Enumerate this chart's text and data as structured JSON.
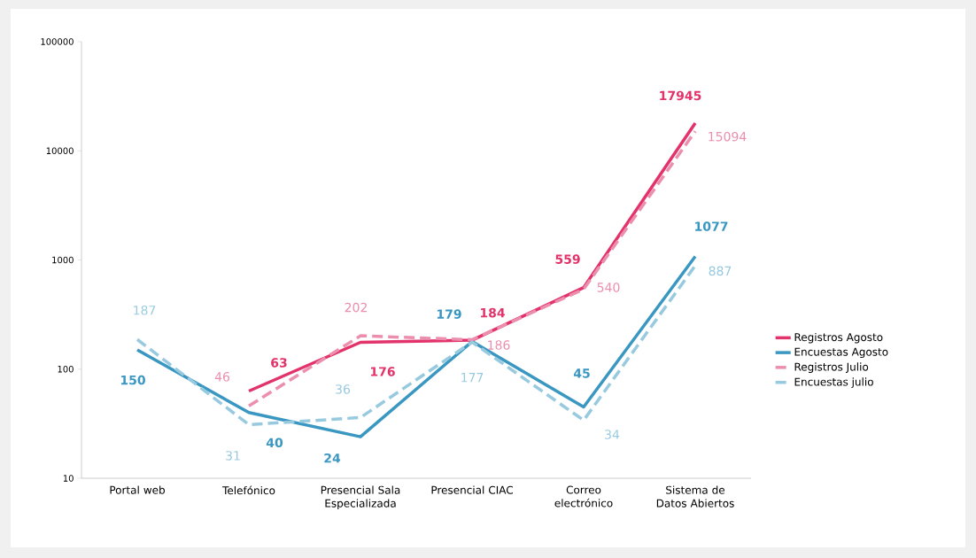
{
  "chart_data": {
    "type": "line",
    "categories": [
      "Portal web",
      "Telefónico",
      "Presencial Sala Especializada",
      "Presencial CIAC",
      "Correo electrónico",
      "Sistema de Datos Abiertos"
    ],
    "series": [
      {
        "name": "Registros Agosto",
        "color": "#e2336a",
        "line_style": "solid",
        "values": [
          null,
          63,
          176,
          184,
          559,
          17945
        ]
      },
      {
        "name": "Encuestas Agosto",
        "color": "#3a97c2",
        "line_style": "solid",
        "values": [
          150,
          40,
          24,
          179,
          45,
          1077
        ]
      },
      {
        "name": "Registros Julio",
        "color": "#ec8fae",
        "line_style": "dashed",
        "values": [
          null,
          46,
          202,
          186,
          540,
          15094
        ]
      },
      {
        "name": "Encuestas julio",
        "color": "#98cadf",
        "line_style": "dashed",
        "values": [
          187,
          31,
          36,
          177,
          34,
          887
        ]
      }
    ],
    "log": true,
    "ylim": [
      10,
      100000
    ],
    "yticks": [
      10,
      100,
      1000,
      10000,
      100000
    ],
    "grid": false,
    "legend": "right",
    "marker": "none",
    "data_labels": true
  }
}
